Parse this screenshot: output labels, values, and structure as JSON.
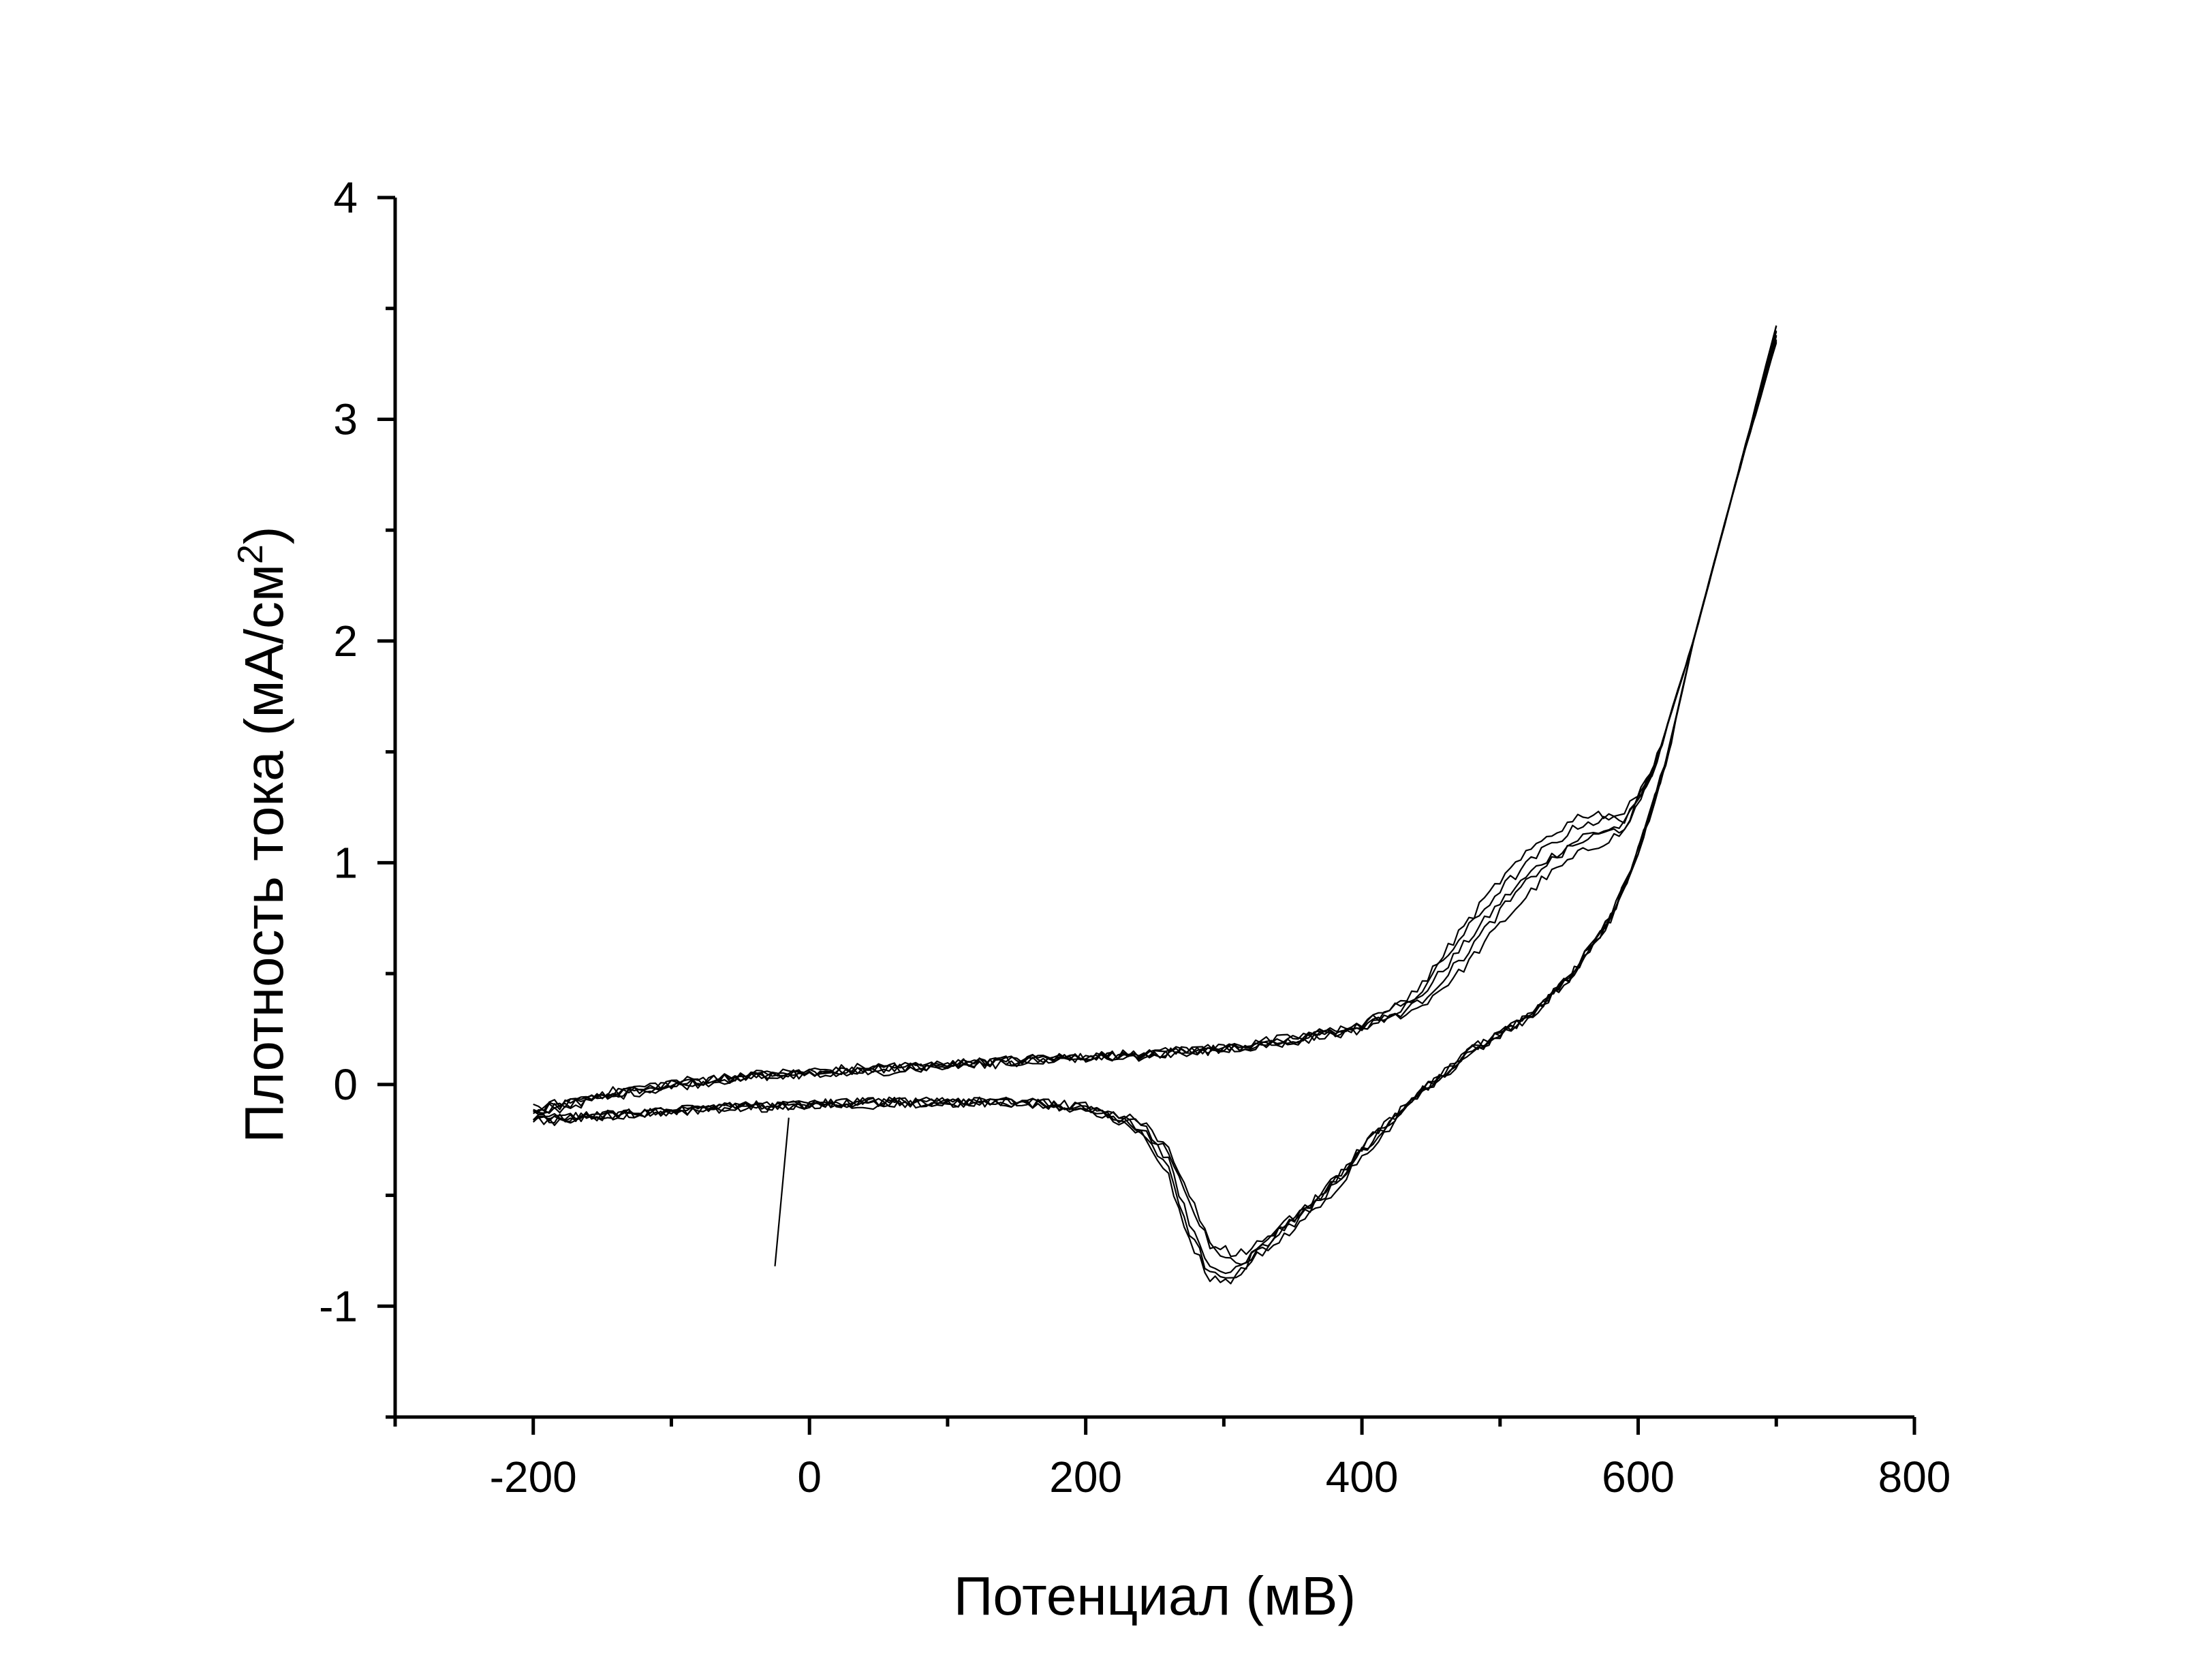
{
  "chart_data": {
    "type": "line",
    "title": "",
    "xlabel": "Потенциал (мВ)",
    "ylabel_main": "Плотность тока (мА/см",
    "ylabel_superscript": "2",
    "ylabel_close": ")",
    "xlim": [
      -300,
      800
    ],
    "ylim": [
      -1.5,
      4
    ],
    "xticks": [
      -200,
      0,
      200,
      400,
      600,
      800
    ],
    "xtick_labels": [
      "-200",
      "0",
      "200",
      "400",
      "600",
      "800"
    ],
    "yticks": [
      -1,
      0,
      1,
      2,
      3,
      4
    ],
    "ytick_labels": [
      "-1",
      "0",
      "1",
      "2",
      "3",
      "4"
    ],
    "x_minor_step": 100,
    "y_minor_step": 0.5,
    "grid": false,
    "legend": "none",
    "line_color": "#000000",
    "initial_segment": {
      "x": [
        -25,
        -15
      ],
      "y": [
        -0.82,
        -0.15
      ]
    },
    "cycles": [
      {
        "forward": {
          "x": [
            -200,
            -150,
            -100,
            -50,
            0,
            50,
            100,
            150,
            200,
            250,
            300,
            350,
            400,
            440,
            470,
            500,
            530,
            560,
            590,
            610,
            640,
            670,
            700
          ],
          "y": [
            -0.12,
            -0.05,
            0.0,
            0.03,
            0.05,
            0.07,
            0.09,
            0.11,
            0.12,
            0.14,
            0.16,
            0.2,
            0.26,
            0.38,
            0.6,
            0.82,
            1.0,
            1.12,
            1.17,
            1.4,
            2.0,
            2.7,
            3.4
          ]
        },
        "reverse": {
          "x": [
            700,
            670,
            640,
            620,
            600,
            580,
            550,
            520,
            480,
            440,
            400,
            370,
            340,
            320,
            305,
            290,
            275,
            260,
            240,
            200,
            150,
            100,
            50,
            0,
            -50,
            -100,
            -150,
            -200
          ],
          "y": [
            3.4,
            2.7,
            2.0,
            1.45,
            1.05,
            0.75,
            0.48,
            0.3,
            0.16,
            -0.05,
            -0.3,
            -0.52,
            -0.66,
            -0.74,
            -0.76,
            -0.72,
            -0.55,
            -0.3,
            -0.18,
            -0.1,
            -0.08,
            -0.08,
            -0.08,
            -0.09,
            -0.1,
            -0.12,
            -0.14,
            -0.16
          ]
        }
      },
      {
        "forward": {
          "x": [
            -200,
            -150,
            -100,
            -50,
            0,
            50,
            100,
            150,
            200,
            250,
            300,
            350,
            400,
            440,
            470,
            500,
            530,
            560,
            590,
            610,
            640,
            670,
            700
          ],
          "y": [
            -0.14,
            -0.06,
            -0.01,
            0.03,
            0.05,
            0.07,
            0.09,
            0.1,
            0.12,
            0.13,
            0.16,
            0.2,
            0.26,
            0.34,
            0.5,
            0.72,
            0.92,
            1.05,
            1.14,
            1.4,
            2.0,
            2.7,
            3.35
          ]
        },
        "reverse": {
          "x": [
            700,
            670,
            640,
            620,
            600,
            580,
            550,
            520,
            480,
            440,
            400,
            370,
            340,
            320,
            305,
            290,
            275,
            260,
            240,
            200,
            150,
            100,
            50,
            0,
            -50,
            -100,
            -150,
            -200
          ],
          "y": [
            3.35,
            2.7,
            2.0,
            1.45,
            1.05,
            0.75,
            0.48,
            0.3,
            0.15,
            -0.06,
            -0.32,
            -0.55,
            -0.7,
            -0.78,
            -0.8,
            -0.72,
            -0.5,
            -0.28,
            -0.17,
            -0.1,
            -0.08,
            -0.08,
            -0.09,
            -0.09,
            -0.11,
            -0.12,
            -0.15,
            -0.17
          ]
        }
      },
      {
        "forward": {
          "x": [
            -200,
            -150,
            -100,
            -50,
            0,
            50,
            100,
            150,
            200,
            250,
            300,
            350,
            400,
            440,
            470,
            500,
            530,
            560,
            590,
            610,
            640,
            670,
            700
          ],
          "y": [
            -0.11,
            -0.04,
            0.01,
            0.04,
            0.06,
            0.08,
            0.09,
            0.11,
            0.13,
            0.14,
            0.17,
            0.21,
            0.27,
            0.4,
            0.65,
            0.88,
            1.05,
            1.18,
            1.2,
            1.4,
            2.0,
            2.7,
            3.38
          ]
        },
        "reverse": {
          "x": [
            700,
            670,
            640,
            620,
            600,
            580,
            550,
            520,
            480,
            440,
            400,
            370,
            340,
            320,
            305,
            290,
            275,
            260,
            240,
            200,
            150,
            100,
            50,
            0,
            -50,
            -100,
            -150,
            -200
          ],
          "y": [
            3.38,
            2.7,
            2.0,
            1.45,
            1.05,
            0.75,
            0.48,
            0.3,
            0.16,
            -0.04,
            -0.28,
            -0.5,
            -0.65,
            -0.76,
            -0.84,
            -0.82,
            -0.62,
            -0.35,
            -0.19,
            -0.1,
            -0.08,
            -0.07,
            -0.08,
            -0.09,
            -0.1,
            -0.12,
            -0.14,
            -0.16
          ]
        }
      },
      {
        "forward": {
          "x": [
            -200,
            -150,
            -100,
            -50,
            0,
            50,
            100,
            150,
            200,
            250,
            300,
            350,
            400,
            440,
            470,
            500,
            530,
            560,
            590,
            610,
            640,
            670,
            700
          ],
          "y": [
            -0.13,
            -0.05,
            0.0,
            0.03,
            0.05,
            0.06,
            0.08,
            0.1,
            0.12,
            0.14,
            0.16,
            0.19,
            0.25,
            0.36,
            0.55,
            0.78,
            0.98,
            1.1,
            1.16,
            1.4,
            2.0,
            2.7,
            3.36
          ]
        },
        "reverse": {
          "x": [
            700,
            670,
            640,
            620,
            600,
            580,
            550,
            520,
            480,
            440,
            400,
            370,
            340,
            320,
            305,
            290,
            275,
            260,
            240,
            200,
            150,
            100,
            50,
            0,
            -50,
            -100,
            -150,
            -200
          ],
          "y": [
            3.36,
            2.7,
            2.0,
            1.45,
            1.05,
            0.75,
            0.48,
            0.3,
            0.15,
            -0.05,
            -0.3,
            -0.52,
            -0.68,
            -0.8,
            -0.88,
            -0.86,
            -0.66,
            -0.38,
            -0.2,
            -0.1,
            -0.08,
            -0.08,
            -0.08,
            -0.09,
            -0.1,
            -0.12,
            -0.14,
            -0.16
          ]
        }
      },
      {
        "forward": {
          "x": [
            -200,
            -150,
            -100,
            -50,
            0,
            50,
            100,
            150,
            200,
            250,
            300,
            350,
            400,
            440,
            470,
            500,
            530,
            560,
            590,
            610,
            640,
            670,
            700
          ],
          "y": [
            -0.12,
            -0.05,
            0.0,
            0.03,
            0.05,
            0.07,
            0.09,
            0.11,
            0.12,
            0.14,
            0.16,
            0.2,
            0.26,
            0.42,
            0.68,
            0.92,
            1.1,
            1.22,
            1.22,
            1.4,
            2.0,
            2.7,
            3.42
          ]
        },
        "reverse": {
          "x": [
            700,
            670,
            640,
            620,
            600,
            580,
            550,
            520,
            480,
            440,
            400,
            370,
            340,
            320,
            305,
            290,
            275,
            260,
            240,
            200,
            150,
            100,
            50,
            0,
            -50,
            -100,
            -150,
            -200
          ],
          "y": [
            3.42,
            2.7,
            2.0,
            1.45,
            1.05,
            0.75,
            0.48,
            0.3,
            0.16,
            -0.05,
            -0.29,
            -0.5,
            -0.66,
            -0.78,
            -0.9,
            -0.88,
            -0.7,
            -0.42,
            -0.22,
            -0.11,
            -0.08,
            -0.08,
            -0.08,
            -0.09,
            -0.1,
            -0.12,
            -0.14,
            -0.16
          ]
        }
      }
    ]
  }
}
